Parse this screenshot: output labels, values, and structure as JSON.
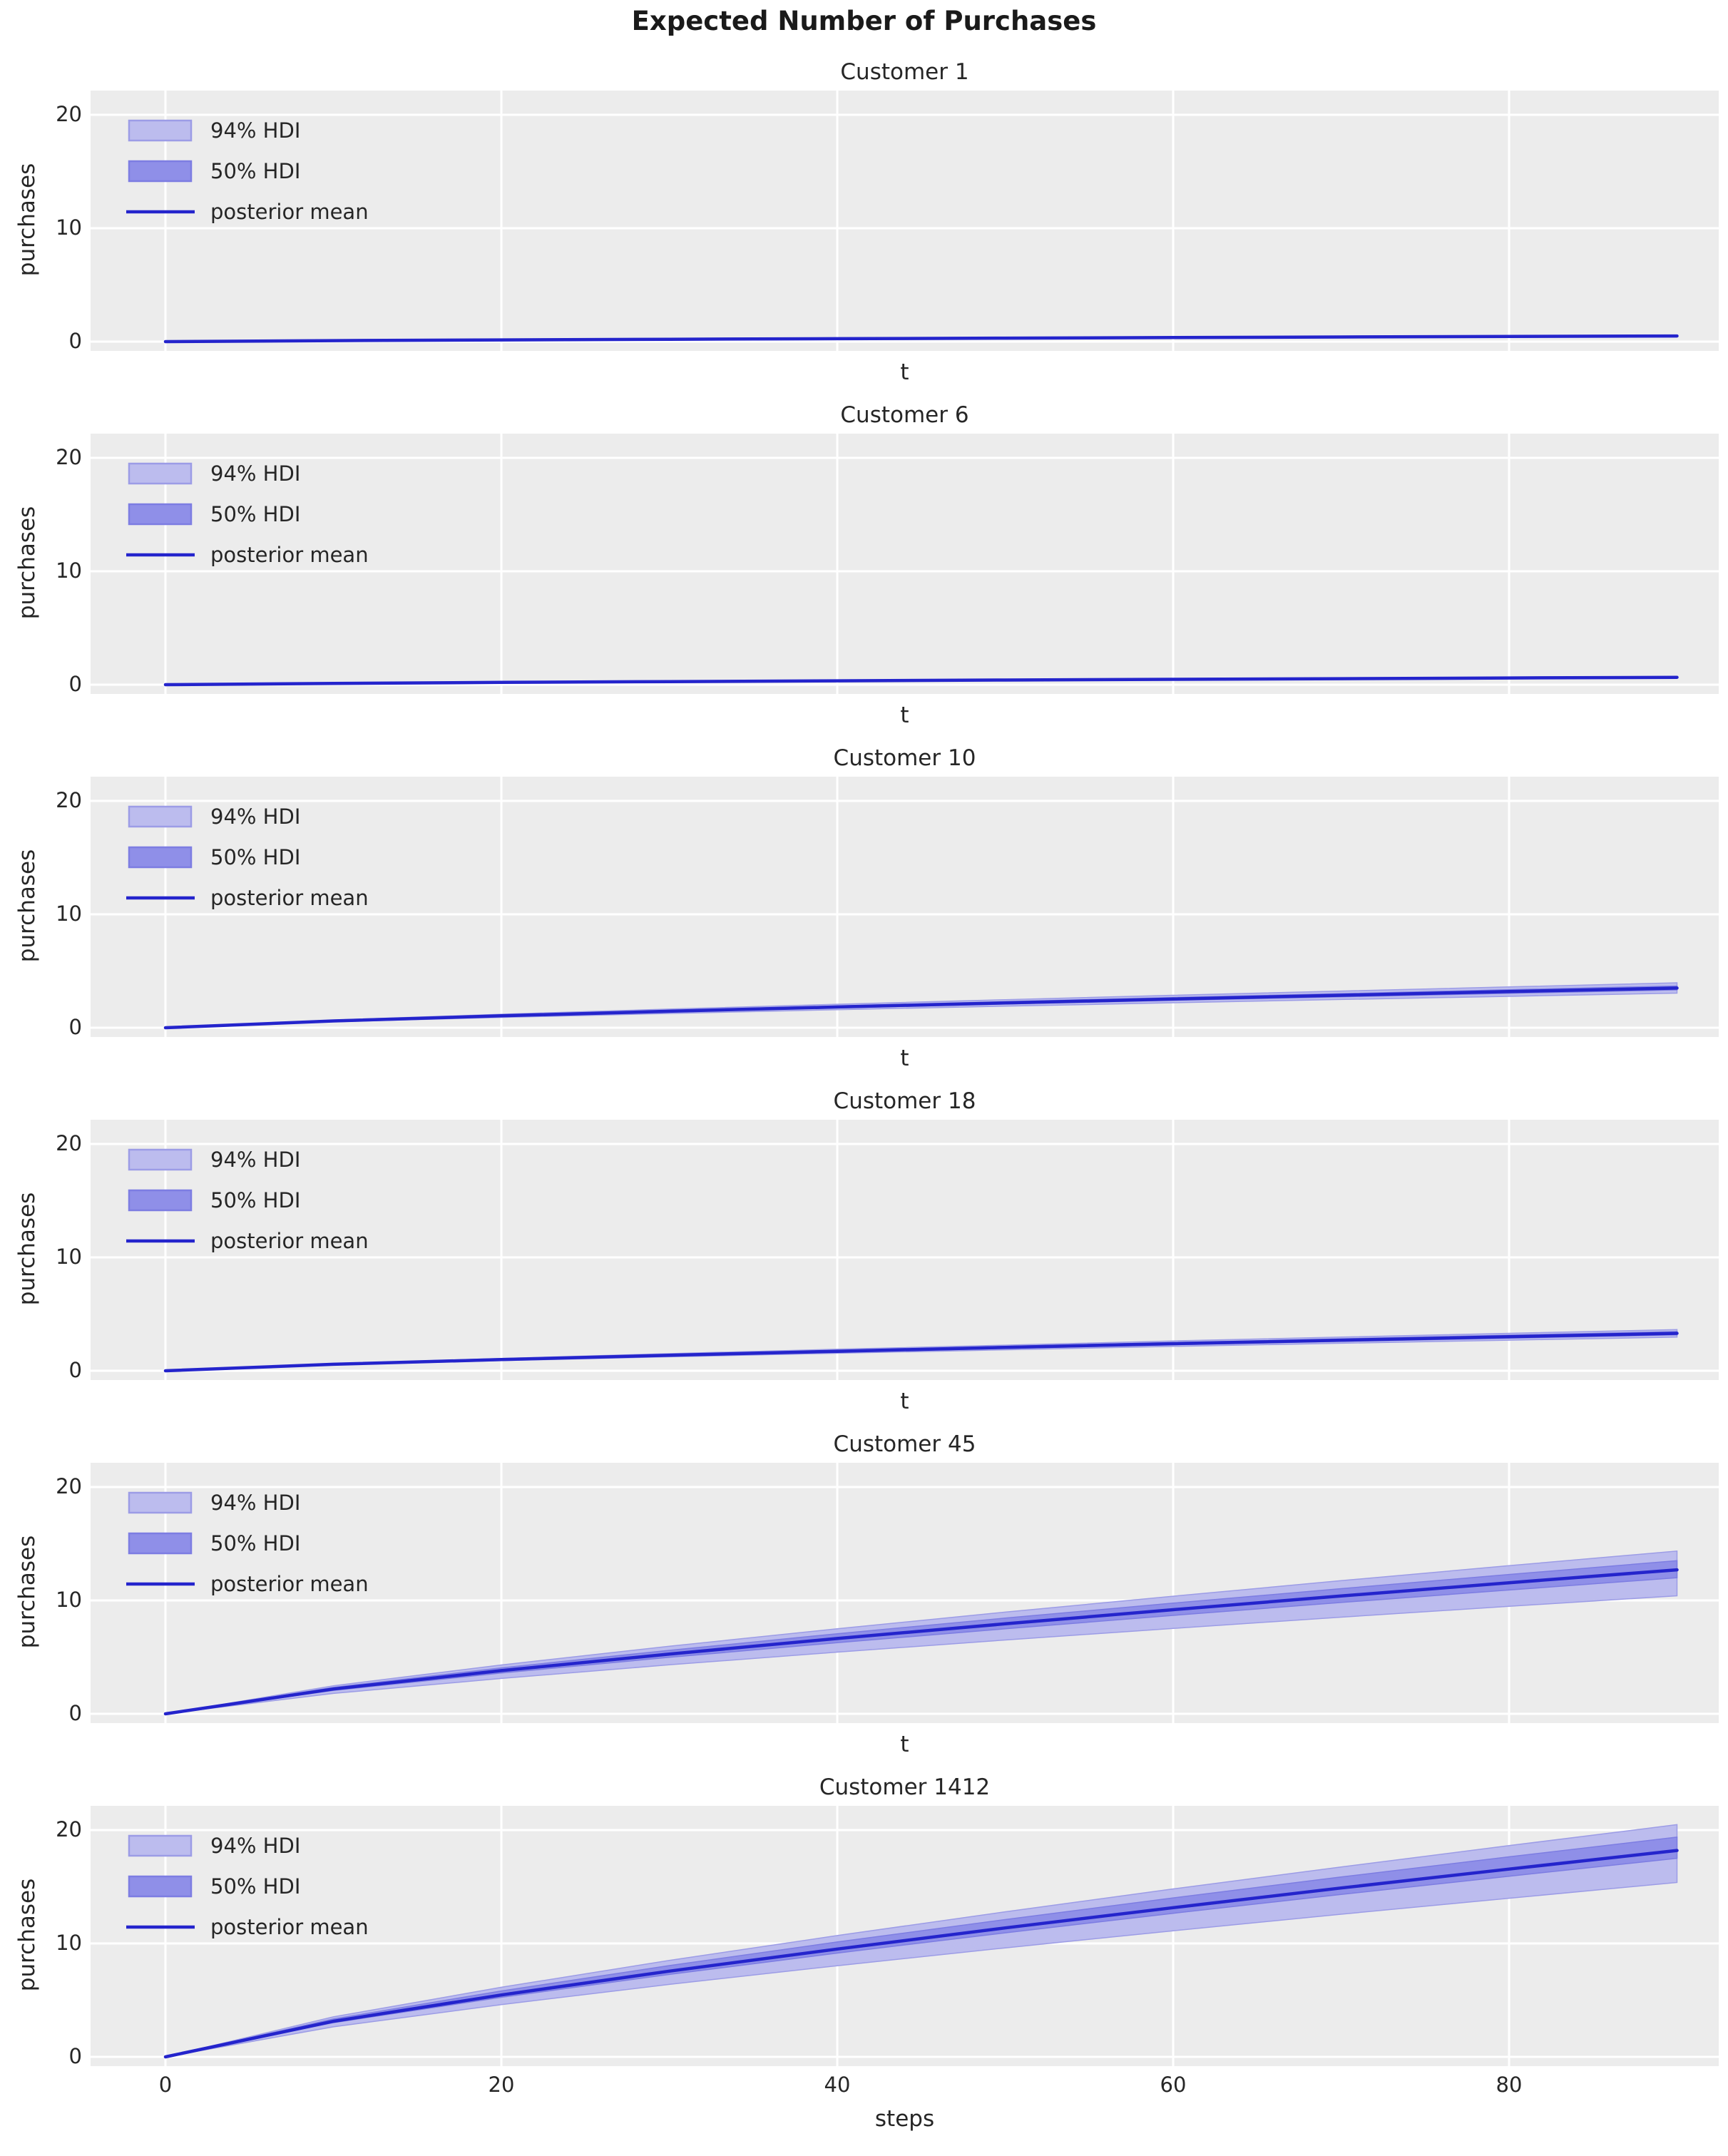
{
  "page": {
    "title": "Expected Number of Purchases"
  },
  "axes": {
    "ylabel": "purchases",
    "xlabel_shared": "t",
    "xlabel_bottom": "steps",
    "yticks": [
      "0",
      "10",
      "20"
    ],
    "xticks": [
      "0",
      "20",
      "40",
      "60",
      "80"
    ],
    "xtick_values": [
      0,
      20,
      40,
      60,
      80
    ],
    "ytick_values": [
      0,
      10,
      20
    ],
    "grid": "on"
  },
  "legend": {
    "position": "upper left",
    "items": [
      {
        "label": "94% HDI",
        "type": "patch",
        "fill": "#bcbcee",
        "edge": "#9c9ce6"
      },
      {
        "label": "50% HDI",
        "type": "patch",
        "fill": "#8f8fe8",
        "edge": "#7d7de2"
      },
      {
        "label": "posterior mean",
        "type": "line",
        "color": "#2424cc"
      }
    ]
  },
  "colors": {
    "figure_bg": "#ffffff",
    "axes_bg": "#ececec",
    "gridline": "#ffffff",
    "mean_line": "#2424cc",
    "hdi94_fill": "#bcbcee",
    "hdi94_edge": "#9c9ce6",
    "hdi50_fill": "#8f8fe8",
    "hdi50_edge": "#7d7de2",
    "text": "#262626"
  },
  "chart_data": [
    {
      "type": "line",
      "title": "Customer 1",
      "xlabel": "t",
      "ylabel": "purchases",
      "ylim": [
        -1,
        22
      ],
      "xlim": [
        -4.5,
        94.5
      ],
      "x": [
        0,
        10,
        20,
        30,
        40,
        50,
        60,
        70,
        80,
        90
      ],
      "series": [
        {
          "name": "posterior mean",
          "values": [
            0,
            0.09,
            0.15,
            0.21,
            0.26,
            0.31,
            0.36,
            0.41,
            0.46,
            0.5
          ]
        },
        {
          "name": "94% HDI low",
          "values": [
            0,
            0.08,
            0.14,
            0.19,
            0.24,
            0.29,
            0.34,
            0.38,
            0.42,
            0.47
          ]
        },
        {
          "name": "94% HDI high",
          "values": [
            0,
            0.09,
            0.16,
            0.22,
            0.28,
            0.33,
            0.39,
            0.44,
            0.49,
            0.54
          ]
        },
        {
          "name": "50% HDI low",
          "values": [
            0,
            0.08,
            0.15,
            0.2,
            0.25,
            0.3,
            0.35,
            0.4,
            0.44,
            0.49
          ]
        },
        {
          "name": "50% HDI high",
          "values": [
            0,
            0.09,
            0.15,
            0.21,
            0.27,
            0.32,
            0.37,
            0.42,
            0.47,
            0.52
          ]
        }
      ]
    },
    {
      "type": "line",
      "title": "Customer 6",
      "xlabel": "t",
      "ylabel": "purchases",
      "ylim": [
        -1,
        22
      ],
      "xlim": [
        -4.5,
        94.5
      ],
      "x": [
        0,
        10,
        20,
        30,
        40,
        50,
        60,
        70,
        80,
        90
      ],
      "series": [
        {
          "name": "posterior mean",
          "values": [
            0,
            0.11,
            0.2,
            0.27,
            0.34,
            0.41,
            0.47,
            0.53,
            0.59,
            0.65
          ]
        },
        {
          "name": "94% HDI low",
          "values": [
            0,
            0.1,
            0.18,
            0.25,
            0.31,
            0.37,
            0.43,
            0.49,
            0.54,
            0.6
          ]
        },
        {
          "name": "94% HDI high",
          "values": [
            0,
            0.12,
            0.21,
            0.29,
            0.37,
            0.44,
            0.51,
            0.57,
            0.64,
            0.7
          ]
        },
        {
          "name": "50% HDI low",
          "values": [
            0,
            0.11,
            0.19,
            0.26,
            0.33,
            0.39,
            0.45,
            0.51,
            0.57,
            0.63
          ]
        },
        {
          "name": "50% HDI high",
          "values": [
            0,
            0.12,
            0.2,
            0.28,
            0.35,
            0.42,
            0.49,
            0.55,
            0.61,
            0.67
          ]
        }
      ]
    },
    {
      "type": "line",
      "title": "Customer 10",
      "xlabel": "t",
      "ylabel": "purchases",
      "ylim": [
        -1,
        22
      ],
      "xlim": [
        -4.5,
        94.5
      ],
      "x": [
        0,
        10,
        20,
        30,
        40,
        50,
        60,
        70,
        80,
        90
      ],
      "series": [
        {
          "name": "posterior mean",
          "values": [
            0,
            0.6,
            1.05,
            1.45,
            1.83,
            2.19,
            2.53,
            2.86,
            3.19,
            3.5
          ]
        },
        {
          "name": "94% HDI low",
          "values": [
            0,
            0.52,
            0.91,
            1.26,
            1.59,
            1.9,
            2.2,
            2.49,
            2.77,
            3.05
          ]
        },
        {
          "name": "94% HDI high",
          "values": [
            0,
            0.68,
            1.19,
            1.64,
            2.07,
            2.47,
            2.86,
            3.23,
            3.6,
            3.96
          ]
        },
        {
          "name": "50% HDI low",
          "values": [
            0,
            0.58,
            1.0,
            1.39,
            1.75,
            2.09,
            2.42,
            2.73,
            3.04,
            3.34
          ]
        },
        {
          "name": "50% HDI high",
          "values": [
            0,
            0.63,
            1.1,
            1.53,
            1.92,
            2.3,
            2.66,
            3.0,
            3.35,
            3.68
          ]
        }
      ]
    },
    {
      "type": "line",
      "title": "Customer 18",
      "xlabel": "t",
      "ylabel": "purchases",
      "ylim": [
        -1,
        22
      ],
      "xlim": [
        -4.5,
        94.5
      ],
      "x": [
        0,
        10,
        20,
        30,
        40,
        50,
        60,
        70,
        80,
        90
      ],
      "series": [
        {
          "name": "posterior mean",
          "values": [
            0,
            0.57,
            0.99,
            1.37,
            1.72,
            2.06,
            2.39,
            2.7,
            3.0,
            3.3
          ]
        },
        {
          "name": "94% HDI low",
          "values": [
            0,
            0.51,
            0.89,
            1.23,
            1.55,
            1.85,
            2.15,
            2.43,
            2.7,
            2.97
          ]
        },
        {
          "name": "94% HDI high",
          "values": [
            0,
            0.63,
            1.09,
            1.51,
            1.9,
            2.26,
            2.63,
            2.97,
            3.3,
            3.63
          ]
        },
        {
          "name": "50% HDI low",
          "values": [
            0,
            0.55,
            0.95,
            1.32,
            1.65,
            1.97,
            2.29,
            2.59,
            2.88,
            3.17
          ]
        },
        {
          "name": "50% HDI high",
          "values": [
            0,
            0.6,
            1.03,
            1.43,
            1.8,
            2.15,
            2.49,
            2.82,
            3.14,
            3.45
          ]
        }
      ]
    },
    {
      "type": "line",
      "title": "Customer 45",
      "xlabel": "t",
      "ylabel": "purchases",
      "ylim": [
        -1,
        22
      ],
      "xlim": [
        -4.5,
        94.5
      ],
      "x": [
        0,
        10,
        20,
        30,
        40,
        50,
        60,
        70,
        80,
        90
      ],
      "series": [
        {
          "name": "posterior mean",
          "values": [
            0,
            2.19,
            3.81,
            5.27,
            6.64,
            7.94,
            9.18,
            10.39,
            11.56,
            12.7
          ]
        },
        {
          "name": "94% HDI low",
          "values": [
            0,
            1.8,
            3.12,
            4.32,
            5.44,
            6.51,
            7.53,
            8.52,
            9.48,
            10.41
          ]
        },
        {
          "name": "94% HDI high",
          "values": [
            0,
            2.47,
            4.31,
            5.96,
            7.5,
            8.97,
            10.37,
            11.74,
            13.06,
            14.35
          ]
        },
        {
          "name": "50% HDI low",
          "values": [
            0,
            2.07,
            3.6,
            4.98,
            6.27,
            7.5,
            8.68,
            9.82,
            10.92,
            12.0
          ]
        },
        {
          "name": "50% HDI high",
          "values": [
            0,
            2.33,
            4.05,
            5.6,
            7.06,
            8.44,
            9.76,
            11.04,
            12.29,
            13.5
          ]
        }
      ]
    },
    {
      "type": "line",
      "title": "Customer 1412",
      "xlabel": "steps",
      "ylabel": "purchases",
      "ylim": [
        -1,
        22
      ],
      "xlim": [
        -4.5,
        94.5
      ],
      "x": [
        0,
        10,
        20,
        30,
        40,
        50,
        60,
        70,
        80,
        90
      ],
      "series": [
        {
          "name": "posterior mean",
          "values": [
            0,
            3.14,
            5.46,
            7.56,
            9.51,
            11.37,
            13.16,
            14.89,
            16.56,
            18.2
          ]
        },
        {
          "name": "94% HDI low",
          "values": [
            0,
            2.65,
            4.61,
            6.39,
            8.04,
            9.61,
            11.12,
            12.58,
            13.99,
            15.38
          ]
        },
        {
          "name": "94% HDI high",
          "values": [
            0,
            3.53,
            6.14,
            8.51,
            10.7,
            12.79,
            14.81,
            16.75,
            18.63,
            20.48
          ]
        },
        {
          "name": "50% HDI low",
          "values": [
            0,
            3.02,
            5.25,
            7.27,
            9.15,
            10.94,
            12.66,
            14.32,
            15.93,
            17.51
          ]
        },
        {
          "name": "50% HDI high",
          "values": [
            0,
            3.34,
            5.81,
            8.05,
            10.13,
            12.11,
            14.02,
            15.86,
            17.64,
            19.38
          ]
        }
      ]
    }
  ]
}
